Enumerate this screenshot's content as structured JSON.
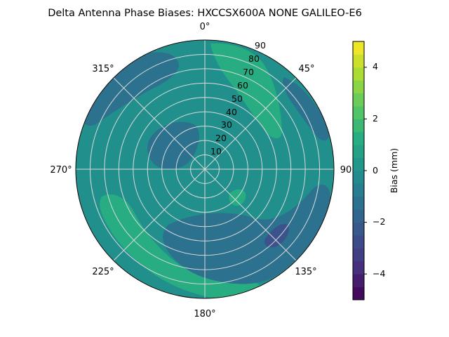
{
  "chart_data": {
    "type": "polar-contour",
    "title": "Delta Antenna Phase Biases: HXCCSX600A      NONE GALILEO-E6",
    "theta_tick_labels": [
      "0°",
      "45°",
      "90",
      "135°",
      "180°",
      "225°",
      "270°",
      "315°"
    ],
    "r_tick_labels": [
      "10",
      "20",
      "30",
      "40",
      "50",
      "60",
      "70",
      "80",
      "90"
    ],
    "r_range": [
      0,
      90
    ],
    "colorbar": {
      "label": "Bias (mm)",
      "range": [
        -5,
        5
      ],
      "tick_labels": [
        "−4",
        "−2",
        "0",
        "2",
        "4"
      ],
      "levels": [
        -5,
        -4.5,
        -4,
        -3.5,
        -3,
        -2.5,
        -2,
        -1.5,
        -1,
        -0.5,
        0,
        0.5,
        1,
        1.5,
        2,
        2.5,
        3,
        3.5,
        4,
        4.5,
        5
      ],
      "colors": [
        "#440154",
        "#46307e",
        "#3b528b",
        "#2c718e",
        "#21908d",
        "#27ad81",
        "#5cc863",
        "#aadc32",
        "#fde725"
      ]
    },
    "colormap": "viridis",
    "grid": true,
    "background_level_color": "#21908d"
  }
}
